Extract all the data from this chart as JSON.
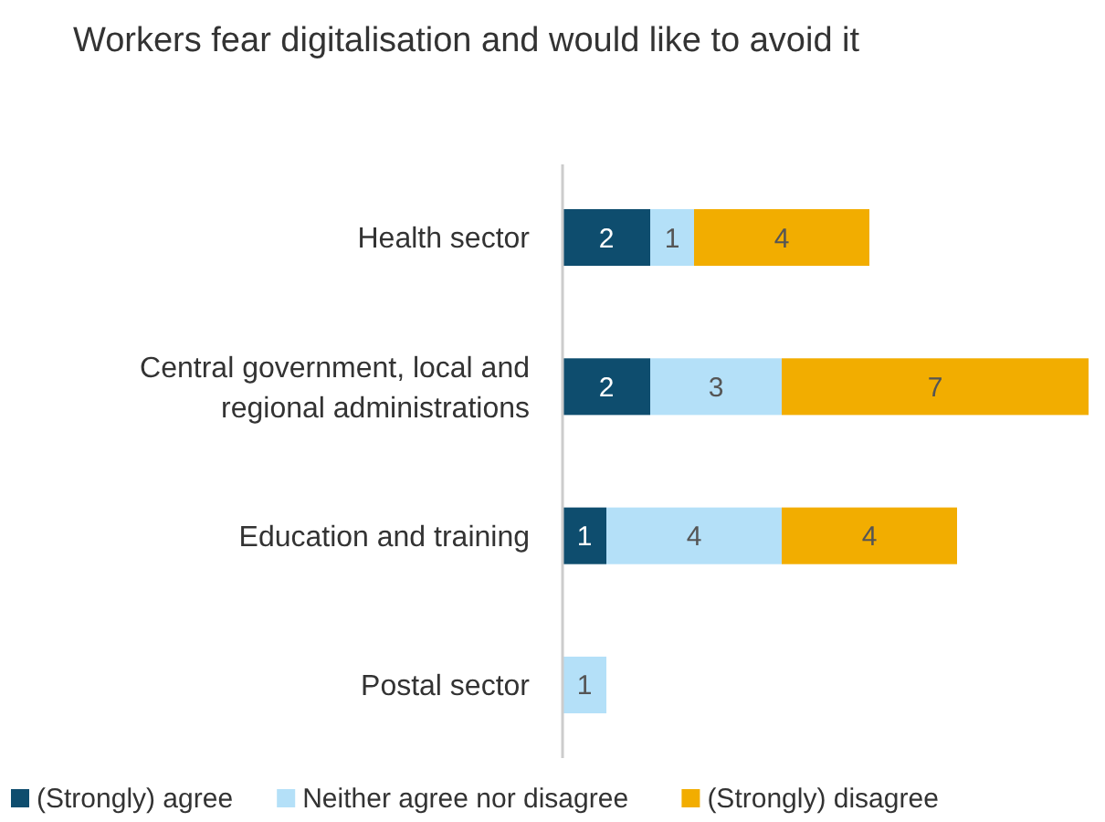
{
  "chart_data": {
    "type": "bar",
    "title": "Workers fear digitalisation and would like to avoid it",
    "orientation": "horizontal",
    "stacked": true,
    "data_labels": true,
    "legend": "bottom",
    "categories": [
      "Health sector",
      "Central government, local and regional administrations",
      "Education and training",
      "Postal sector"
    ],
    "series": [
      {
        "name": "(Strongly) agree",
        "color": "#0e4d6e",
        "values": [
          2,
          2,
          1,
          null
        ]
      },
      {
        "name": "Neither agree nor disagree",
        "color": "#b4e0f8",
        "values": [
          1,
          3,
          4,
          1
        ]
      },
      {
        "name": "(Strongly) disagree",
        "color": "#f2ad00",
        "values": [
          4,
          7,
          4,
          null
        ]
      }
    ]
  }
}
